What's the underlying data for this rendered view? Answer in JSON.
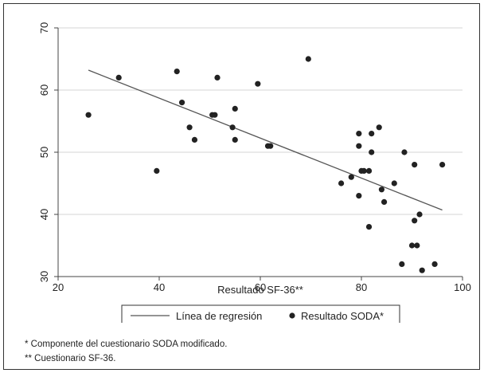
{
  "chart_data": {
    "type": "scatter",
    "title": "",
    "xlabel": "Resultado SF-36**",
    "ylabel": "",
    "xlim": [
      20,
      100
    ],
    "ylim": [
      30,
      70
    ],
    "x_ticks": [
      20,
      40,
      60,
      80,
      100
    ],
    "y_ticks": [
      30,
      40,
      50,
      60,
      70
    ],
    "grid": "horizontal",
    "legend_position": "bottom",
    "series": [
      {
        "name": "Resultado SODA*",
        "kind": "scatter",
        "color": "#222222",
        "points": [
          [
            26,
            56
          ],
          [
            32,
            62
          ],
          [
            39.5,
            47
          ],
          [
            43.5,
            63
          ],
          [
            44.5,
            58
          ],
          [
            46,
            54
          ],
          [
            47,
            52
          ],
          [
            50.5,
            56
          ],
          [
            51,
            56
          ],
          [
            51.5,
            62
          ],
          [
            54.5,
            54
          ],
          [
            55,
            57
          ],
          [
            55,
            52
          ],
          [
            59.5,
            61
          ],
          [
            61.5,
            51
          ],
          [
            62,
            51
          ],
          [
            69.5,
            65
          ],
          [
            76,
            45
          ],
          [
            78,
            46
          ],
          [
            79.5,
            53
          ],
          [
            79.5,
            51
          ],
          [
            79.5,
            43
          ],
          [
            80,
            47
          ],
          [
            80.5,
            47
          ],
          [
            81.5,
            47
          ],
          [
            81.5,
            38
          ],
          [
            82,
            53
          ],
          [
            82,
            50
          ],
          [
            83.5,
            54
          ],
          [
            84,
            44
          ],
          [
            84.5,
            42
          ],
          [
            86.5,
            45
          ],
          [
            88,
            32
          ],
          [
            88.5,
            50
          ],
          [
            90,
            35
          ],
          [
            90.5,
            48
          ],
          [
            90.5,
            39
          ],
          [
            91,
            35
          ],
          [
            91.5,
            40
          ],
          [
            92,
            31
          ],
          [
            94.5,
            32
          ],
          [
            96,
            48
          ]
        ]
      },
      {
        "name": "Línea de regresión",
        "kind": "line",
        "color": "#555555",
        "points": [
          [
            26,
            63.2
          ],
          [
            96,
            40.7
          ]
        ]
      }
    ]
  },
  "footnotes": [
    "* Componente del cuestionario SODA modificado.",
    "** Cuestionario SF-36."
  ]
}
